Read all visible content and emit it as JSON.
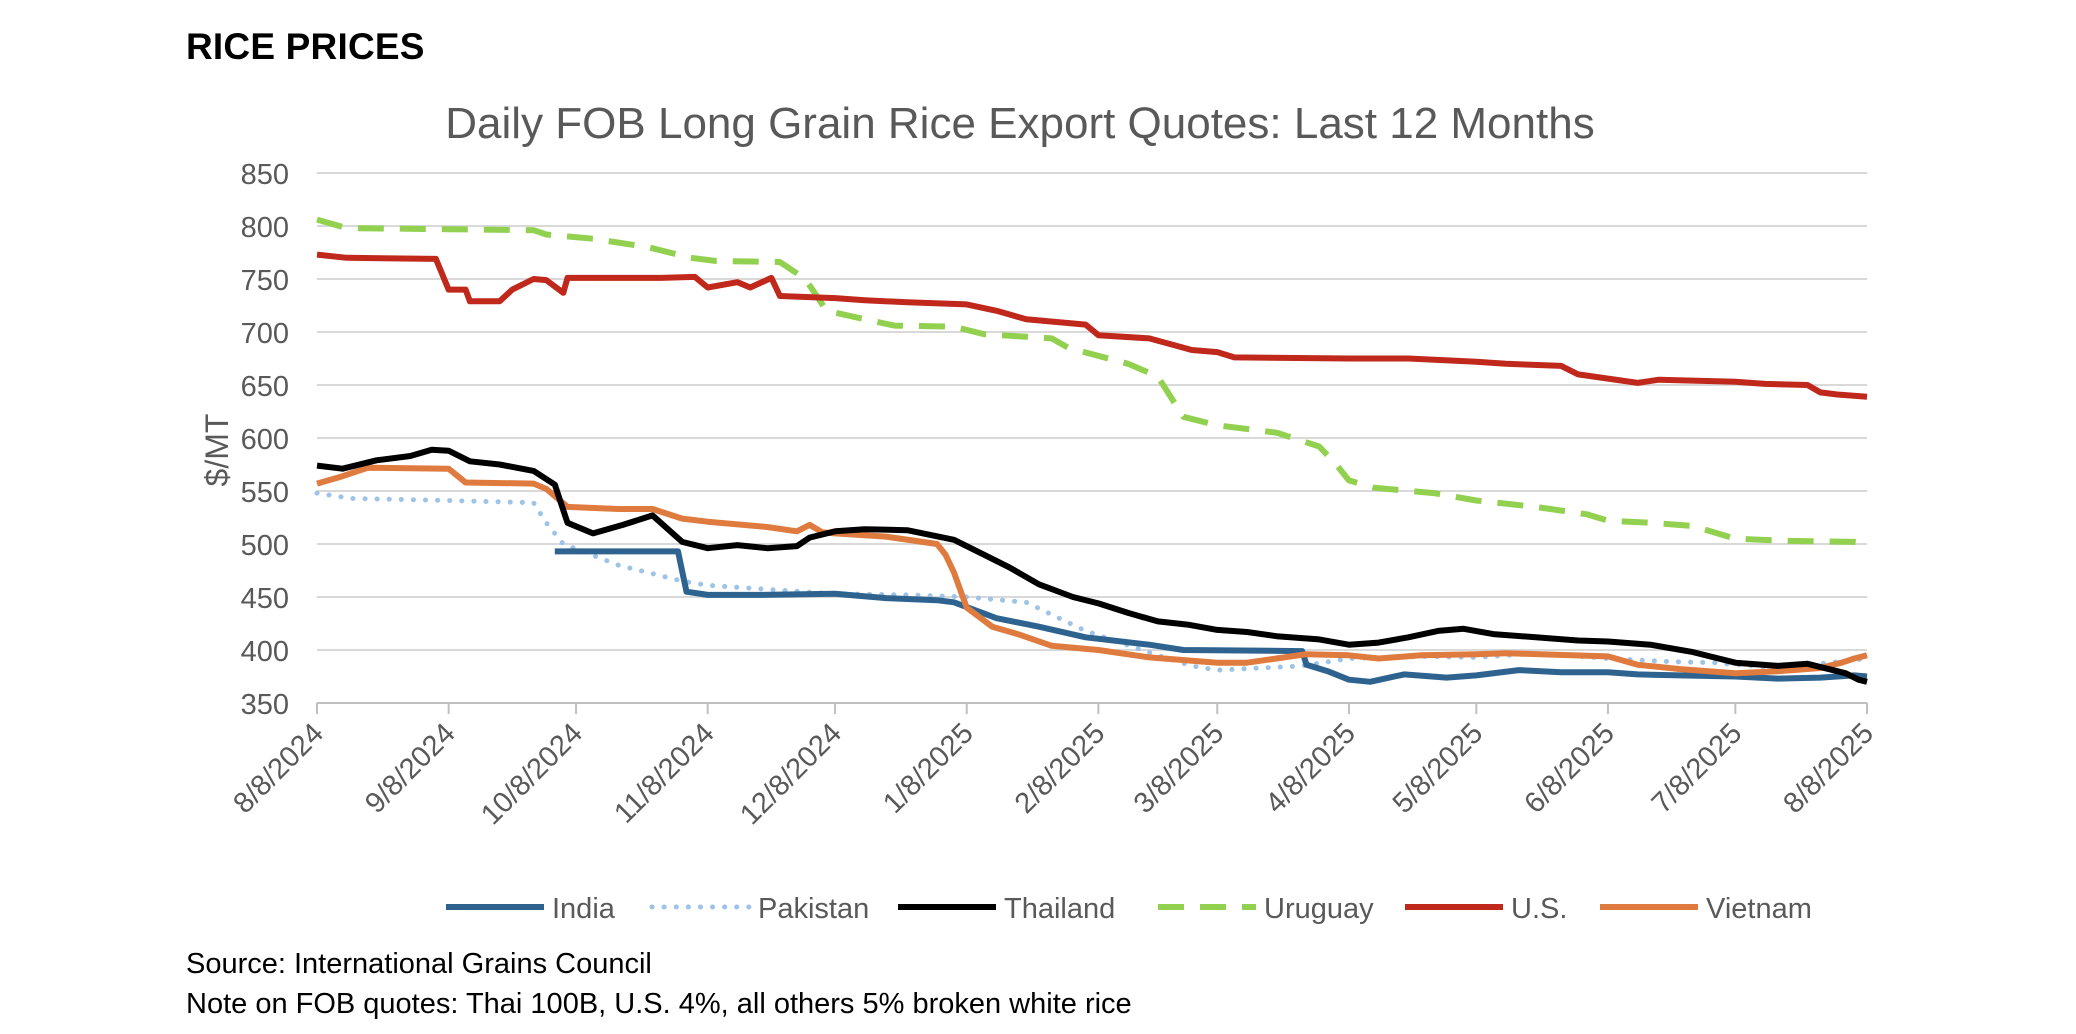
{
  "page": {
    "heading": "RICE PRICES",
    "source": "Source: International Grains Council",
    "note": "Note on FOB quotes: Thai 100B, U.S. 4%, all others 5% broken white rice"
  },
  "chart_data": {
    "type": "line",
    "title": "Daily FOB Long Grain Rice Export Quotes: Last 12 Months",
    "xlabel": "",
    "ylabel": "$/MT",
    "ylim": [
      350,
      850
    ],
    "yticks": [
      350,
      400,
      450,
      500,
      550,
      600,
      650,
      700,
      750,
      800,
      850
    ],
    "xlim": [
      "2024-08-08",
      "2025-08-08"
    ],
    "xticks": [
      {
        "date": "2024-08-08",
        "label": "8/8/2024"
      },
      {
        "date": "2024-09-08",
        "label": "9/8/2024"
      },
      {
        "date": "2024-10-08",
        "label": "10/8/2024"
      },
      {
        "date": "2024-11-08",
        "label": "11/8/2024"
      },
      {
        "date": "2024-12-08",
        "label": "12/8/2024"
      },
      {
        "date": "2025-01-08",
        "label": "1/8/2025"
      },
      {
        "date": "2025-02-08",
        "label": "2/8/2025"
      },
      {
        "date": "2025-03-08",
        "label": "3/8/2025"
      },
      {
        "date": "2025-04-08",
        "label": "4/8/2025"
      },
      {
        "date": "2025-05-08",
        "label": "5/8/2025"
      },
      {
        "date": "2025-06-08",
        "label": "6/8/2025"
      },
      {
        "date": "2025-07-08",
        "label": "7/8/2025"
      },
      {
        "date": "2025-08-08",
        "label": "8/8/2025"
      }
    ],
    "grid": "horizontal",
    "legend_position": "bottom",
    "series": [
      {
        "name": "India",
        "color": "#2e6390",
        "style": "solid",
        "points": [
          [
            "2024-10-03",
            493
          ],
          [
            "2024-11-01",
            493
          ],
          [
            "2024-11-03",
            455
          ],
          [
            "2024-11-08",
            452
          ],
          [
            "2024-11-20",
            452
          ],
          [
            "2024-12-08",
            453
          ],
          [
            "2024-12-20",
            449
          ],
          [
            "2025-01-01",
            447
          ],
          [
            "2025-01-05",
            445
          ],
          [
            "2025-01-15",
            430
          ],
          [
            "2025-01-25",
            422
          ],
          [
            "2025-02-05",
            412
          ],
          [
            "2025-02-20",
            405
          ],
          [
            "2025-02-28",
            400
          ],
          [
            "2025-03-28",
            399
          ],
          [
            "2025-03-29",
            386
          ],
          [
            "2025-04-03",
            380
          ],
          [
            "2025-04-08",
            372
          ],
          [
            "2025-04-13",
            370
          ],
          [
            "2025-04-21",
            377
          ],
          [
            "2025-05-01",
            374
          ],
          [
            "2025-05-08",
            376
          ],
          [
            "2025-05-18",
            381
          ],
          [
            "2025-05-28",
            379
          ],
          [
            "2025-06-08",
            379
          ],
          [
            "2025-06-15",
            377
          ],
          [
            "2025-06-25",
            376
          ],
          [
            "2025-07-08",
            375
          ],
          [
            "2025-07-18",
            373
          ],
          [
            "2025-07-28",
            374
          ],
          [
            "2025-08-05",
            376
          ],
          [
            "2025-08-08",
            375
          ]
        ]
      },
      {
        "name": "Pakistan",
        "color": "#9dc3e6",
        "style": "dotted",
        "points": [
          [
            "2024-08-08",
            548
          ],
          [
            "2024-08-16",
            543
          ],
          [
            "2024-09-08",
            541
          ],
          [
            "2024-09-28",
            539
          ],
          [
            "2024-10-01",
            520
          ],
          [
            "2024-10-05",
            500
          ],
          [
            "2024-10-18",
            480
          ],
          [
            "2024-10-28",
            470
          ],
          [
            "2024-11-02",
            465
          ],
          [
            "2024-11-08",
            461
          ],
          [
            "2024-11-23",
            457
          ],
          [
            "2024-12-08",
            453
          ],
          [
            "2024-12-25",
            452
          ],
          [
            "2025-01-08",
            450
          ],
          [
            "2025-01-22",
            445
          ],
          [
            "2025-02-05",
            418
          ],
          [
            "2025-02-22",
            395
          ],
          [
            "2025-03-02",
            385
          ],
          [
            "2025-03-08",
            381
          ],
          [
            "2025-03-28",
            385
          ],
          [
            "2025-04-08",
            392
          ],
          [
            "2025-04-25",
            394
          ],
          [
            "2025-05-08",
            393
          ],
          [
            "2025-05-23",
            397
          ],
          [
            "2025-06-08",
            392
          ],
          [
            "2025-06-23",
            389
          ],
          [
            "2025-07-03",
            388
          ],
          [
            "2025-07-15",
            384
          ],
          [
            "2025-07-28",
            387
          ],
          [
            "2025-08-08",
            392
          ]
        ]
      },
      {
        "name": "Thailand",
        "color": "#000000",
        "style": "solid",
        "points": [
          [
            "2024-08-08",
            574
          ],
          [
            "2024-08-14",
            571
          ],
          [
            "2024-08-22",
            579
          ],
          [
            "2024-08-30",
            583
          ],
          [
            "2024-09-04",
            589
          ],
          [
            "2024-09-08",
            588
          ],
          [
            "2024-09-13",
            578
          ],
          [
            "2024-09-20",
            575
          ],
          [
            "2024-09-28",
            569
          ],
          [
            "2024-10-03",
            556
          ],
          [
            "2024-10-06",
            520
          ],
          [
            "2024-10-12",
            510
          ],
          [
            "2024-10-19",
            518
          ],
          [
            "2024-10-26",
            527
          ],
          [
            "2024-11-02",
            502
          ],
          [
            "2024-11-08",
            496
          ],
          [
            "2024-11-15",
            499
          ],
          [
            "2024-11-22",
            496
          ],
          [
            "2024-11-29",
            498
          ],
          [
            "2024-12-02",
            506
          ],
          [
            "2024-12-08",
            512
          ],
          [
            "2024-12-15",
            514
          ],
          [
            "2024-12-25",
            513
          ],
          [
            "2025-01-05",
            504
          ],
          [
            "2025-01-12",
            490
          ],
          [
            "2025-01-18",
            478
          ],
          [
            "2025-01-25",
            462
          ],
          [
            "2025-02-02",
            450
          ],
          [
            "2025-02-08",
            444
          ],
          [
            "2025-02-15",
            435
          ],
          [
            "2025-02-22",
            427
          ],
          [
            "2025-03-01",
            424
          ],
          [
            "2025-03-08",
            419
          ],
          [
            "2025-03-15",
            417
          ],
          [
            "2025-03-22",
            413
          ],
          [
            "2025-04-01",
            410
          ],
          [
            "2025-04-08",
            405
          ],
          [
            "2025-04-15",
            407
          ],
          [
            "2025-04-22",
            412
          ],
          [
            "2025-04-29",
            418
          ],
          [
            "2025-05-05",
            420
          ],
          [
            "2025-05-12",
            415
          ],
          [
            "2025-05-22",
            412
          ],
          [
            "2025-06-01",
            409
          ],
          [
            "2025-06-08",
            408
          ],
          [
            "2025-06-18",
            405
          ],
          [
            "2025-06-28",
            398
          ],
          [
            "2025-07-08",
            388
          ],
          [
            "2025-07-18",
            385
          ],
          [
            "2025-07-25",
            387
          ],
          [
            "2025-08-03",
            378
          ],
          [
            "2025-08-06",
            372
          ],
          [
            "2025-08-08",
            370
          ]
        ]
      },
      {
        "name": "Uruguay",
        "color": "#92d050",
        "style": "dashed",
        "points": [
          [
            "2024-08-08",
            806
          ],
          [
            "2024-08-15",
            798
          ],
          [
            "2024-09-08",
            797
          ],
          [
            "2024-09-28",
            796
          ],
          [
            "2024-10-01",
            792
          ],
          [
            "2024-10-12",
            788
          ],
          [
            "2024-10-25",
            780
          ],
          [
            "2024-11-04",
            770
          ],
          [
            "2024-11-10",
            767
          ],
          [
            "2024-11-25",
            766
          ],
          [
            "2024-12-01",
            750
          ],
          [
            "2024-12-06",
            720
          ],
          [
            "2024-12-15",
            712
          ],
          [
            "2024-12-22",
            706
          ],
          [
            "2025-01-05",
            705
          ],
          [
            "2025-01-12",
            698
          ],
          [
            "2025-01-28",
            694
          ],
          [
            "2025-02-01",
            685
          ],
          [
            "2025-02-15",
            670
          ],
          [
            "2025-02-22",
            658
          ],
          [
            "2025-02-28",
            620
          ],
          [
            "2025-03-08",
            612
          ],
          [
            "2025-03-22",
            605
          ],
          [
            "2025-04-01",
            592
          ],
          [
            "2025-04-05",
            575
          ],
          [
            "2025-04-08",
            560
          ],
          [
            "2025-04-14",
            553
          ],
          [
            "2025-04-28",
            548
          ],
          [
            "2025-05-08",
            541
          ],
          [
            "2025-05-22",
            535
          ],
          [
            "2025-06-03",
            528
          ],
          [
            "2025-06-08",
            522
          ],
          [
            "2025-06-18",
            520
          ],
          [
            "2025-06-28",
            517
          ],
          [
            "2025-07-08",
            505
          ],
          [
            "2025-07-20",
            503
          ],
          [
            "2025-08-05",
            502
          ],
          [
            "2025-08-08",
            500
          ]
        ]
      },
      {
        "name": "U.S.",
        "color": "#c0281c",
        "style": "solid",
        "points": [
          [
            "2024-08-08",
            773
          ],
          [
            "2024-08-15",
            770
          ],
          [
            "2024-09-05",
            769
          ],
          [
            "2024-09-08",
            740
          ],
          [
            "2024-09-12",
            740
          ],
          [
            "2024-09-13",
            729
          ],
          [
            "2024-09-20",
            729
          ],
          [
            "2024-09-23",
            740
          ],
          [
            "2024-09-28",
            750
          ],
          [
            "2024-10-01",
            749
          ],
          [
            "2024-10-05",
            737
          ],
          [
            "2024-10-06",
            751
          ],
          [
            "2024-10-28",
            751
          ],
          [
            "2024-11-05",
            752
          ],
          [
            "2024-11-08",
            742
          ],
          [
            "2024-11-15",
            747
          ],
          [
            "2024-11-18",
            742
          ],
          [
            "2024-11-23",
            751
          ],
          [
            "2024-11-25",
            734
          ],
          [
            "2024-12-08",
            732
          ],
          [
            "2024-12-15",
            730
          ],
          [
            "2024-12-25",
            728
          ],
          [
            "2025-01-08",
            726
          ],
          [
            "2025-01-15",
            720
          ],
          [
            "2025-01-22",
            712
          ],
          [
            "2025-02-05",
            707
          ],
          [
            "2025-02-08",
            697
          ],
          [
            "2025-02-20",
            694
          ],
          [
            "2025-03-02",
            683
          ],
          [
            "2025-03-08",
            681
          ],
          [
            "2025-03-12",
            676
          ],
          [
            "2025-04-08",
            675
          ],
          [
            "2025-04-22",
            675
          ],
          [
            "2025-05-08",
            672
          ],
          [
            "2025-05-15",
            670
          ],
          [
            "2025-05-28",
            668
          ],
          [
            "2025-06-01",
            660
          ],
          [
            "2025-06-08",
            656
          ],
          [
            "2025-06-15",
            652
          ],
          [
            "2025-06-20",
            655
          ],
          [
            "2025-07-08",
            653
          ],
          [
            "2025-07-15",
            651
          ],
          [
            "2025-07-25",
            650
          ],
          [
            "2025-07-28",
            643
          ],
          [
            "2025-08-01",
            641
          ],
          [
            "2025-08-08",
            639
          ]
        ]
      },
      {
        "name": "Vietnam",
        "color": "#e07b3f",
        "style": "solid",
        "points": [
          [
            "2024-08-08",
            557
          ],
          [
            "2024-08-14",
            564
          ],
          [
            "2024-08-20",
            572
          ],
          [
            "2024-09-08",
            571
          ],
          [
            "2024-09-12",
            558
          ],
          [
            "2024-09-28",
            557
          ],
          [
            "2024-10-01",
            552
          ],
          [
            "2024-10-06",
            535
          ],
          [
            "2024-10-18",
            533
          ],
          [
            "2024-10-26",
            533
          ],
          [
            "2024-11-02",
            524
          ],
          [
            "2024-11-08",
            521
          ],
          [
            "2024-11-22",
            516
          ],
          [
            "2024-11-29",
            512
          ],
          [
            "2024-12-02",
            518
          ],
          [
            "2024-12-05",
            511
          ],
          [
            "2024-12-08",
            510
          ],
          [
            "2024-12-20",
            507
          ],
          [
            "2025-01-01",
            500
          ],
          [
            "2025-01-03",
            490
          ],
          [
            "2025-01-05",
            473
          ],
          [
            "2025-01-08",
            440
          ],
          [
            "2025-01-14",
            422
          ],
          [
            "2025-01-20",
            415
          ],
          [
            "2025-01-28",
            404
          ],
          [
            "2025-02-08",
            400
          ],
          [
            "2025-02-20",
            393
          ],
          [
            "2025-03-08",
            388
          ],
          [
            "2025-03-15",
            388
          ],
          [
            "2025-03-29",
            396
          ],
          [
            "2025-04-08",
            395
          ],
          [
            "2025-04-15",
            392
          ],
          [
            "2025-04-25",
            395
          ],
          [
            "2025-05-08",
            396
          ],
          [
            "2025-05-15",
            397
          ],
          [
            "2025-06-08",
            394
          ],
          [
            "2025-06-15",
            386
          ],
          [
            "2025-06-25",
            382
          ],
          [
            "2025-07-08",
            378
          ],
          [
            "2025-07-18",
            380
          ],
          [
            "2025-07-28",
            383
          ],
          [
            "2025-08-02",
            388
          ],
          [
            "2025-08-05",
            392
          ],
          [
            "2025-08-08",
            395
          ]
        ]
      }
    ]
  }
}
